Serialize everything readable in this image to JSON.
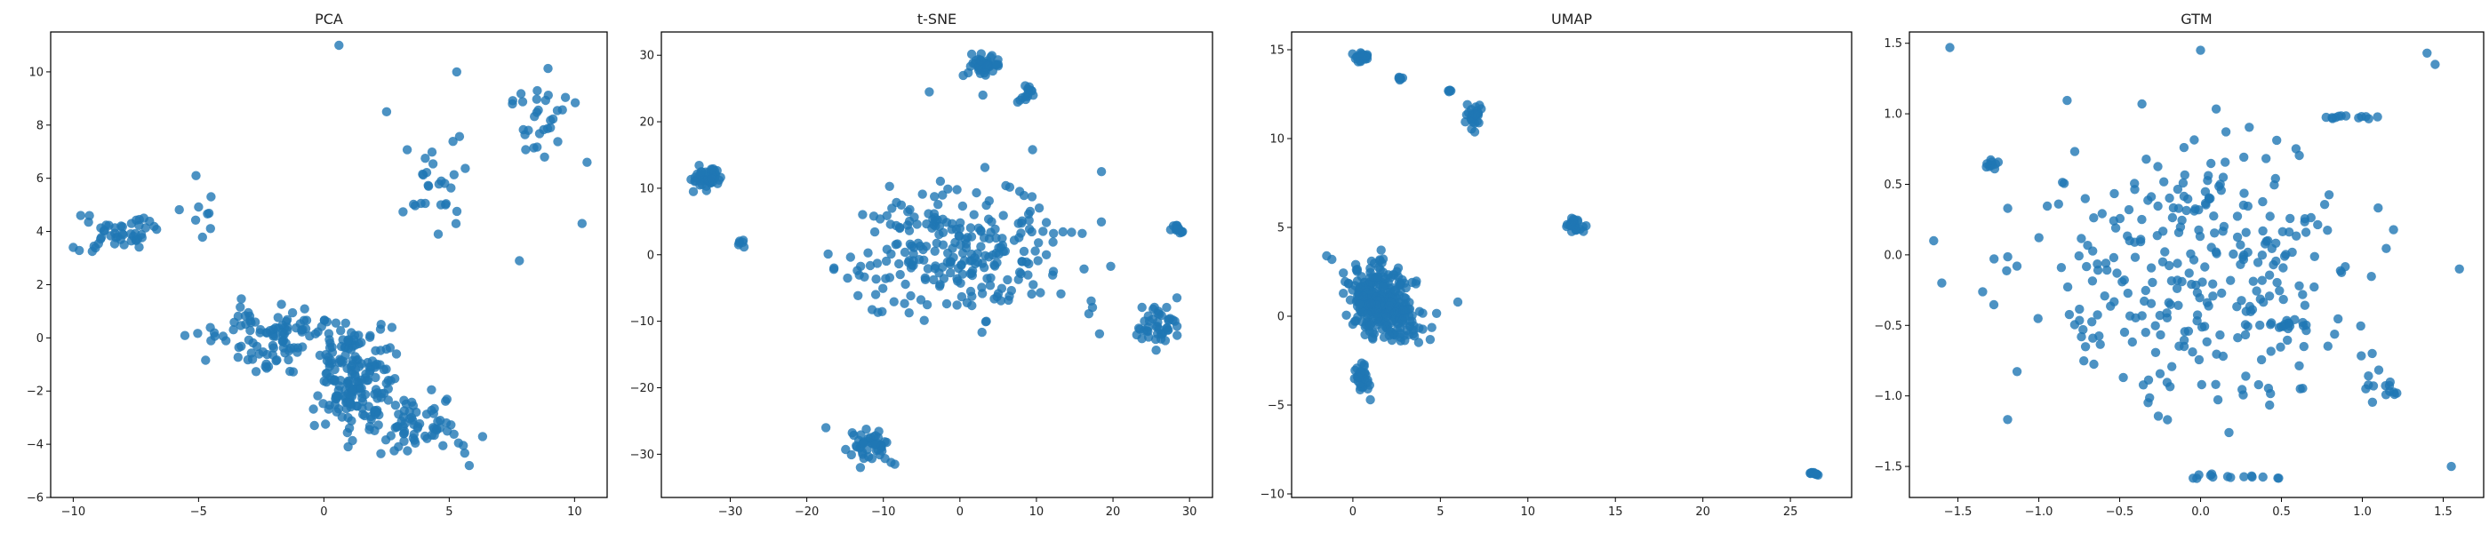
{
  "figure": {
    "marker_color": "#1f77b4"
  },
  "chart_data": [
    {
      "type": "scatter",
      "title": "PCA",
      "xlabel": "",
      "ylabel": "",
      "xlim": [
        -10.9,
        11.3
      ],
      "ylim": [
        -6.0,
        11.5
      ],
      "xticks": [
        -10,
        -5,
        0,
        5,
        10
      ],
      "yticks": [
        -6,
        -4,
        -2,
        0,
        2,
        4,
        6,
        8,
        10
      ],
      "grid": false,
      "clusters": [
        {
          "x": [
            -1.0,
            3.5
          ],
          "y": [
            -4.5,
            1.5
          ],
          "n": 180
        },
        {
          "x": [
            -6.0,
            2.0
          ],
          "y": [
            -2.0,
            2.0
          ],
          "n": 100
        },
        {
          "x": [
            1.0,
            6.5
          ],
          "y": [
            -5.0,
            -1.5
          ],
          "n": 70
        },
        {
          "x": [
            -10.0,
            -6.0
          ],
          "y": [
            2.8,
            5.0
          ],
          "n": 45
        },
        {
          "x": [
            -6.0,
            -4.0
          ],
          "y": [
            3.0,
            6.2
          ],
          "n": 8
        },
        {
          "x": [
            2.0,
            7.0
          ],
          "y": [
            3.0,
            8.5
          ],
          "n": 28
        },
        {
          "x": [
            6.5,
            10.5
          ],
          "y": [
            6.0,
            10.8
          ],
          "n": 30
        }
      ],
      "points": [
        [
          0.6,
          11.0
        ],
        [
          -9.7,
          4.6
        ],
        [
          2.5,
          8.5
        ],
        [
          5.3,
          10.0
        ],
        [
          10.5,
          6.6
        ],
        [
          10.3,
          4.3
        ],
        [
          -5.1,
          6.1
        ],
        [
          -10.0,
          3.4
        ],
        [
          7.8,
          2.9
        ],
        [
          5.8,
          -4.8
        ]
      ]
    },
    {
      "type": "scatter",
      "title": "t-SNE",
      "xlabel": "",
      "ylabel": "",
      "xlim": [
        -39.0,
        33.0
      ],
      "ylim": [
        -36.5,
        33.5
      ],
      "xticks": [
        -30,
        -20,
        -10,
        0,
        10,
        20,
        30
      ],
      "yticks": [
        -30,
        -20,
        -10,
        0,
        10,
        20,
        30
      ],
      "grid": false,
      "clusters": [
        {
          "x": [
            -36.0,
            -30.0
          ],
          "y": [
            9.0,
            14.0
          ],
          "n": 50
        },
        {
          "x": [
            -29.5,
            -27.5
          ],
          "y": [
            0.5,
            3.0
          ],
          "n": 6
        },
        {
          "x": [
            0.0,
            6.0
          ],
          "y": [
            26.0,
            31.0
          ],
          "n": 45
        },
        {
          "x": [
            7.0,
            10.0
          ],
          "y": [
            22.0,
            26.0
          ],
          "n": 14
        },
        {
          "x": [
            -21.0,
            22.0
          ],
          "y": [
            -14.0,
            15.0
          ],
          "n": 260
        },
        {
          "x": [
            22.0,
            30.0
          ],
          "y": [
            -15.0,
            -6.0
          ],
          "n": 45
        },
        {
          "x": [
            27.0,
            30.0
          ],
          "y": [
            3.0,
            5.0
          ],
          "n": 15
        },
        {
          "x": [
            -16.0,
            -8.0
          ],
          "y": [
            -32.0,
            -25.0
          ],
          "n": 45
        }
      ],
      "points": [
        [
          -13.0,
          -32.0
        ],
        [
          -8.5,
          -31.5
        ],
        [
          -17.5,
          -26.0
        ],
        [
          3.0,
          24.0
        ],
        [
          -4.0,
          24.5
        ],
        [
          9.5,
          15.8
        ],
        [
          18.5,
          12.5
        ]
      ]
    },
    {
      "type": "scatter",
      "title": "UMAP",
      "xlabel": "",
      "ylabel": "",
      "xlim": [
        -3.5,
        28.5
      ],
      "ylim": [
        -10.2,
        16.0
      ],
      "xticks": [
        0,
        5,
        10,
        15,
        20,
        25
      ],
      "yticks": [
        -10,
        -5,
        0,
        5,
        10,
        15
      ],
      "grid": false,
      "clusters": [
        {
          "x": [
            -1.0,
            4.0
          ],
          "y": [
            -2.0,
            4.0
          ],
          "n": 250
        },
        {
          "x": [
            0.0,
            5.5
          ],
          "y": [
            -2.0,
            1.5
          ],
          "n": 60
        },
        {
          "x": [
            -0.2,
            1.2
          ],
          "y": [
            -4.5,
            -2.0
          ],
          "n": 30
        },
        {
          "x": [
            -0.3,
            1.3
          ],
          "y": [
            14.2,
            15.0
          ],
          "n": 28
        },
        {
          "x": [
            2.5,
            3.0
          ],
          "y": [
            13.2,
            13.6
          ],
          "n": 6
        },
        {
          "x": [
            5.3,
            5.8
          ],
          "y": [
            12.5,
            12.9
          ],
          "n": 5
        },
        {
          "x": [
            6.2,
            7.5
          ],
          "y": [
            10.0,
            12.5
          ],
          "n": 28
        },
        {
          "x": [
            12.0,
            13.5
          ],
          "y": [
            4.5,
            5.8
          ],
          "n": 28
        },
        {
          "x": [
            26.0,
            26.8
          ],
          "y": [
            -9.1,
            -8.6
          ],
          "n": 12
        }
      ],
      "points": [
        [
          -1.5,
          3.4
        ],
        [
          -1.2,
          3.2
        ],
        [
          1.0,
          -4.7
        ],
        [
          6.0,
          0.8
        ]
      ]
    },
    {
      "type": "scatter",
      "title": "GTM",
      "xlabel": "",
      "ylabel": "",
      "xlim": [
        -1.8,
        1.75
      ],
      "ylim": [
        -1.72,
        1.58
      ],
      "xticks": [
        -1.5,
        -1.0,
        -0.5,
        0.0,
        0.5,
        1.0,
        1.5
      ],
      "yticks": [
        -1.5,
        -1.0,
        -0.5,
        0.0,
        0.5,
        1.0,
        1.5
      ],
      "grid": false,
      "clusters": [
        {
          "x": [
            -1.6,
            1.6
          ],
          "y": [
            -1.5,
            1.3
          ],
          "n": 300
        },
        {
          "x": [
            0.7,
            1.2
          ],
          "y": [
            0.95,
            1.0
          ],
          "n": 12
        },
        {
          "x": [
            -0.3,
            0.6
          ],
          "y": [
            -1.6,
            -1.55
          ],
          "n": 14
        },
        {
          "x": [
            -1.4,
            -1.2
          ],
          "y": [
            0.6,
            0.7
          ],
          "n": 10
        },
        {
          "x": [
            0.95,
            1.3
          ],
          "y": [
            -1.1,
            -0.8
          ],
          "n": 14
        },
        {
          "x": [
            0.35,
            0.75
          ],
          "y": [
            -0.55,
            -0.45
          ],
          "n": 12
        }
      ],
      "points": [
        [
          -1.55,
          1.47
        ],
        [
          0.0,
          1.45
        ],
        [
          1.4,
          1.43
        ],
        [
          1.45,
          1.35
        ],
        [
          -1.65,
          0.1
        ],
        [
          -1.6,
          -0.2
        ],
        [
          1.6,
          -0.1
        ],
        [
          1.55,
          -1.5
        ]
      ]
    }
  ]
}
